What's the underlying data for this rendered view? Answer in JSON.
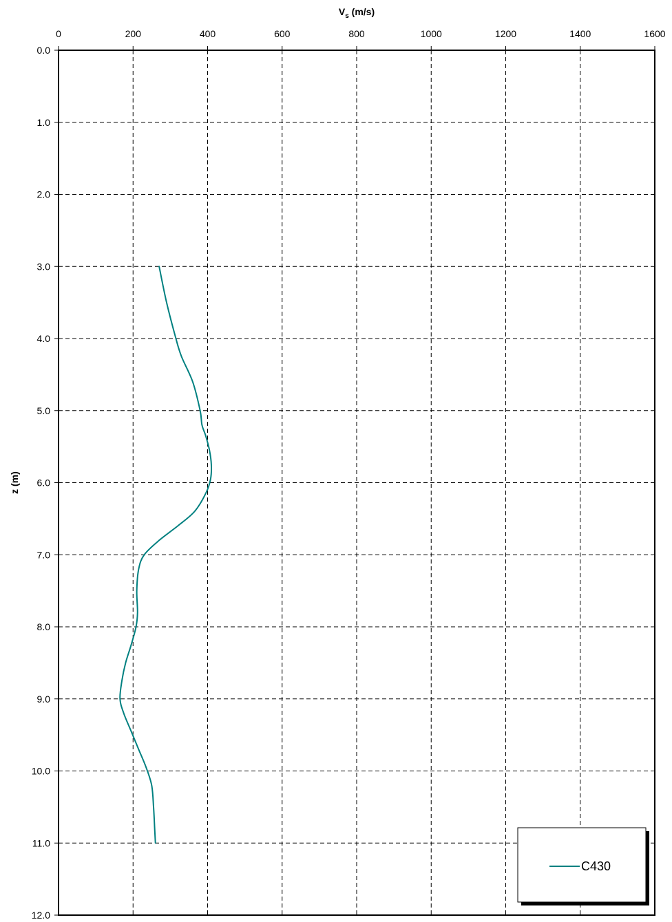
{
  "chart_data": {
    "type": "line",
    "xlabel": "V",
    "xlabel_subscript": "s",
    "xlabel_unit": " (m/s)",
    "ylabel": "z (m)",
    "x_axis_position": "top",
    "y_axis_inverted": true,
    "xlim": [
      0,
      1600
    ],
    "ylim": [
      0,
      12
    ],
    "x_ticks": [
      0,
      200,
      400,
      600,
      800,
      1000,
      1200,
      1400,
      1600
    ],
    "x_tick_labels": [
      "0",
      "200",
      "400",
      "600",
      "800",
      "1000",
      "1200",
      "1400",
      "1600"
    ],
    "y_ticks": [
      0,
      1,
      2,
      3,
      4,
      5,
      6,
      7,
      8,
      9,
      10,
      11,
      12
    ],
    "y_tick_labels": [
      "0.0",
      "1.0",
      "2.0",
      "3.0",
      "4.0",
      "5.0",
      "6.0",
      "7.0",
      "8.0",
      "9.0",
      "10.0",
      "11.0",
      "12.0"
    ],
    "grid": true,
    "grid_style": "dashed",
    "legend_position": "bottom-right",
    "series": [
      {
        "name": "C430",
        "color": "#008080",
        "points": [
          {
            "vs": 270,
            "z": 3.0
          },
          {
            "vs": 290,
            "z": 3.5
          },
          {
            "vs": 315,
            "z": 4.0
          },
          {
            "vs": 330,
            "z": 4.25
          },
          {
            "vs": 360,
            "z": 4.6
          },
          {
            "vs": 380,
            "z": 5.0
          },
          {
            "vs": 385,
            "z": 5.2
          },
          {
            "vs": 395,
            "z": 5.35
          },
          {
            "vs": 405,
            "z": 5.55
          },
          {
            "vs": 410,
            "z": 5.75
          },
          {
            "vs": 408,
            "z": 5.95
          },
          {
            "vs": 395,
            "z": 6.15
          },
          {
            "vs": 365,
            "z": 6.4
          },
          {
            "vs": 320,
            "z": 6.6
          },
          {
            "vs": 270,
            "z": 6.8
          },
          {
            "vs": 230,
            "z": 7.0
          },
          {
            "vs": 215,
            "z": 7.2
          },
          {
            "vs": 210,
            "z": 7.5
          },
          {
            "vs": 212,
            "z": 7.8
          },
          {
            "vs": 208,
            "z": 8.0
          },
          {
            "vs": 195,
            "z": 8.25
          },
          {
            "vs": 180,
            "z": 8.5
          },
          {
            "vs": 170,
            "z": 8.75
          },
          {
            "vs": 165,
            "z": 9.0
          },
          {
            "vs": 175,
            "z": 9.2
          },
          {
            "vs": 195,
            "z": 9.45
          },
          {
            "vs": 215,
            "z": 9.7
          },
          {
            "vs": 235,
            "z": 9.95
          },
          {
            "vs": 250,
            "z": 10.2
          },
          {
            "vs": 255,
            "z": 10.5
          },
          {
            "vs": 258,
            "z": 10.8
          },
          {
            "vs": 260,
            "z": 11.0
          }
        ]
      }
    ]
  }
}
